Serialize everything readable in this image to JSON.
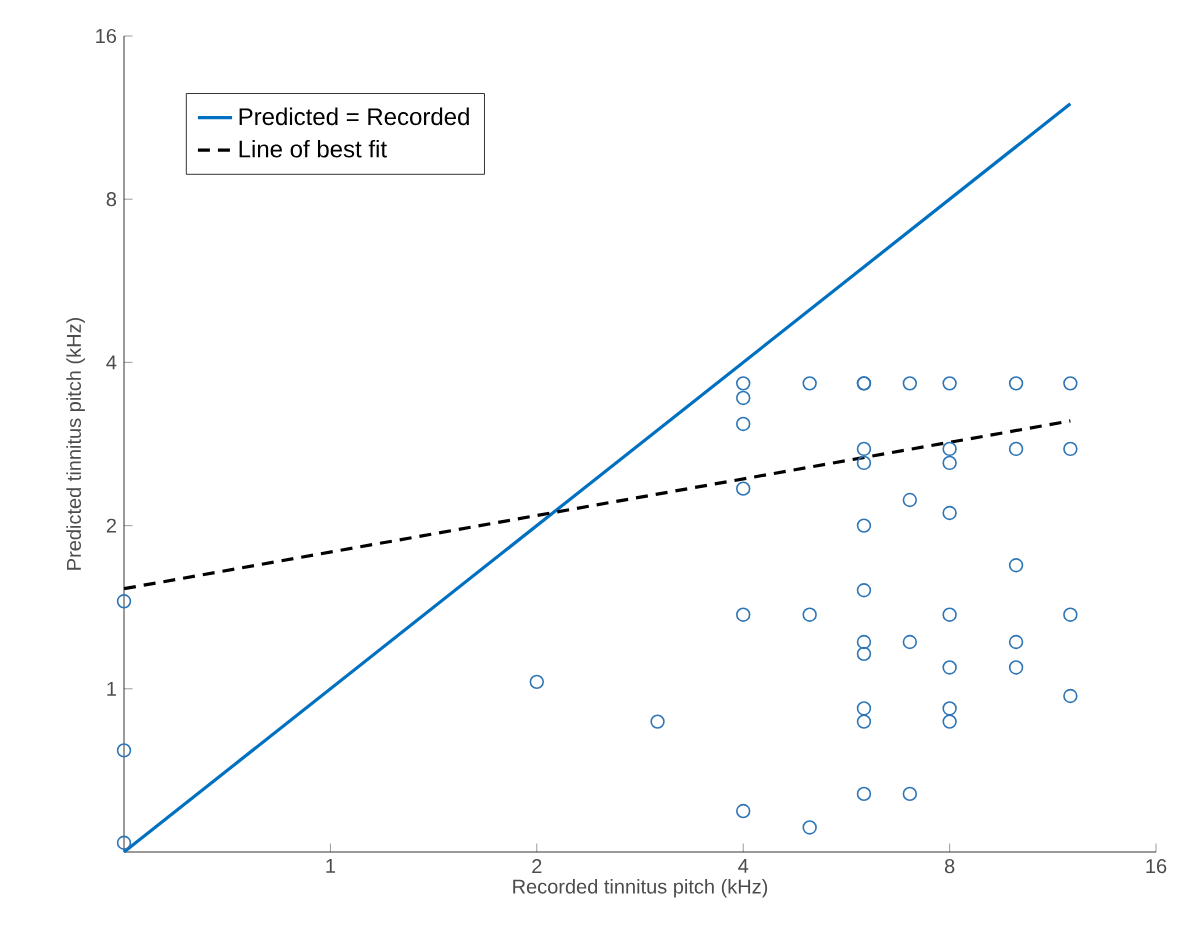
{
  "chart_data": {
    "type": "scatter",
    "xlabel": "Recorded tinnitus pitch (kHz)",
    "ylabel": "Predicted tinnitus pitch (kHz)",
    "log": "xy",
    "xlim": [
      0.5,
      16
    ],
    "ylim": [
      0.5,
      16
    ],
    "xticks": [
      1,
      2,
      4,
      8,
      16
    ],
    "yticks": [
      1,
      2,
      4,
      8,
      16
    ],
    "grid": false,
    "legend": "top left",
    "series": [
      {
        "marker": "circle",
        "color": "#2e75b6",
        "x": [
          0.5,
          0.5,
          0.5,
          2,
          3,
          4,
          4,
          4,
          4,
          4,
          4,
          5,
          5,
          5,
          6,
          6,
          6,
          6,
          6,
          6,
          6,
          6,
          6,
          6,
          6,
          7,
          7,
          7,
          7,
          8,
          8,
          8,
          8,
          8,
          8,
          8,
          8,
          10,
          10,
          10,
          10,
          10,
          12,
          12,
          12,
          12
        ],
        "values": [
          1.45,
          0.77,
          0.52,
          1.03,
          0.87,
          3.66,
          3.44,
          3.08,
          2.34,
          1.37,
          0.595,
          3.66,
          1.37,
          0.555,
          3.66,
          2.77,
          2.61,
          2.0,
          1.52,
          1.22,
          1.16,
          0.92,
          0.87,
          0.64,
          3.66,
          3.66,
          2.23,
          1.22,
          0.64,
          3.66,
          2.77,
          2.61,
          2.11,
          1.37,
          1.095,
          0.92,
          0.87,
          3.66,
          2.77,
          1.69,
          1.22,
          1.095,
          3.66,
          2.77,
          1.37,
          0.97
        ]
      },
      {
        "type": "line",
        "name": "Predicted = Recorded",
        "color": "#0070c0",
        "marker": "none",
        "line_style": "solid",
        "x": [
          0.5,
          12
        ],
        "values": [
          0.5,
          12
        ]
      },
      {
        "type": "line",
        "name": "Line of best fit",
        "color": "#000000",
        "marker": "none",
        "line_style": "dashed",
        "x": [
          0.5,
          12
        ],
        "values": [
          1.53,
          3.12
        ]
      }
    ]
  }
}
